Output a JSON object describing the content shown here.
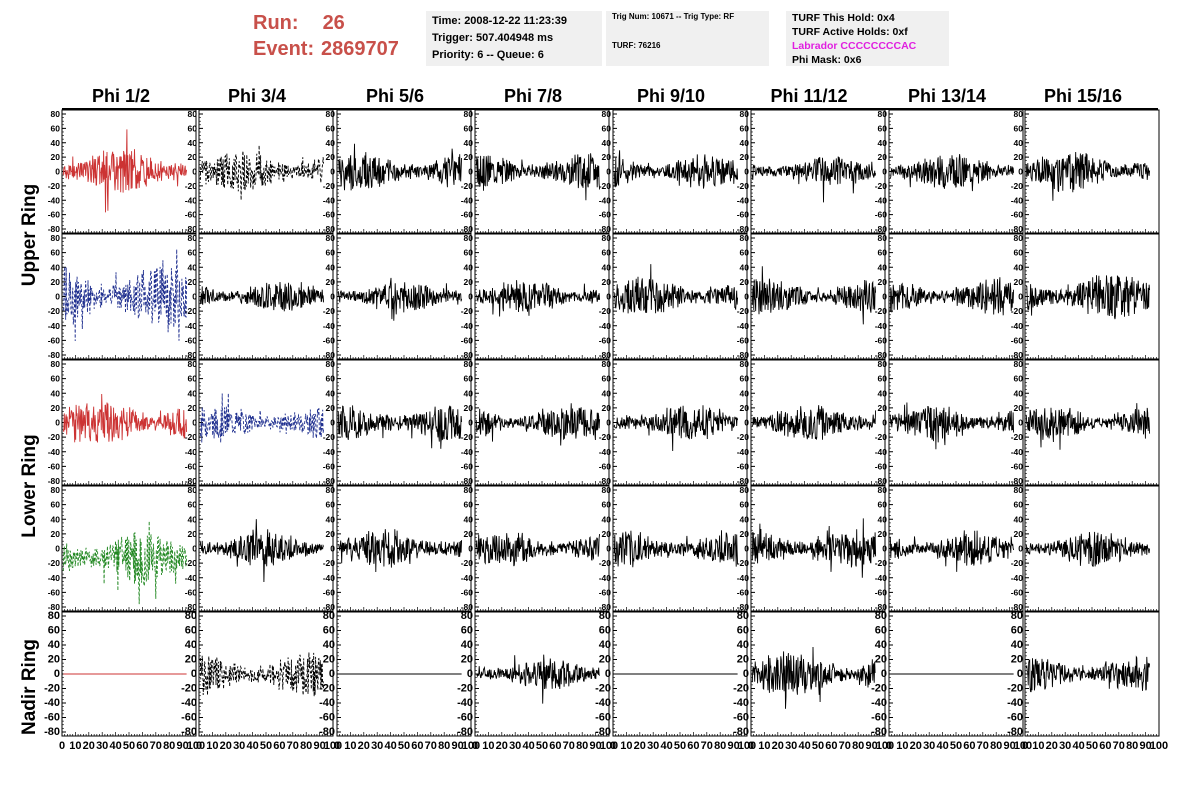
{
  "header": {
    "run_label": "Run:",
    "run_value": "26",
    "event_label": "Event:",
    "event_value": "2869707",
    "box1": {
      "time": "Time: 2008-12-22 11:23:39",
      "trigger": "Trigger: 507.404948 ms",
      "priority": "Priority: 6 -- Queue: 6"
    },
    "box2": {
      "trig": "Trig Num: 10671 -- Trig Type: RF",
      "turf": "TURF: 76216"
    },
    "box3": {
      "this_hold": "TURF This Hold: 0x4",
      "active_holds": "TURF Active Holds: 0xf",
      "labrador": "Labrador CCCCCCCCAC",
      "phi_mask": "Phi Mask: 0x6"
    }
  },
  "columns": [
    "Phi 1/2",
    "Phi 3/4",
    "Phi 5/6",
    "Phi 7/8",
    "Phi 9/10",
    "Phi 11/12",
    "Phi 13/14",
    "Phi 15/16"
  ],
  "rings": [
    "Upper Ring",
    "Lower Ring",
    "Nadir Ring"
  ],
  "chart_data": {
    "type": "line",
    "description_of_grid": "5 rows x 8 columns of waveform panels",
    "x": {
      "range": [
        0,
        100
      ],
      "ticks": [
        0,
        10,
        20,
        30,
        40,
        50,
        60,
        70,
        80,
        90,
        100
      ]
    },
    "y": {
      "range": [
        -80,
        80
      ],
      "ticks": [
        80,
        60,
        40,
        20,
        0,
        -20,
        -40,
        -60,
        -80
      ]
    },
    "colors": {
      "red": "#cc3333",
      "blue": "#1f2f8f",
      "green": "#228822",
      "black": "#000000"
    },
    "panels": [
      [
        {
          "color": "red",
          "style": "solid",
          "amp": 18,
          "seed": 11
        },
        {
          "color": "black",
          "style": "dashed",
          "amp": 16,
          "seed": 12
        },
        {
          "color": "black",
          "style": "solid",
          "amp": 15,
          "seed": 13
        },
        {
          "color": "black",
          "style": "solid",
          "amp": 14,
          "seed": 14
        },
        {
          "color": "black",
          "style": "solid",
          "amp": 14,
          "seed": 15
        },
        {
          "color": "black",
          "style": "solid",
          "amp": 12,
          "seed": 16
        },
        {
          "color": "black",
          "style": "solid",
          "amp": 14,
          "seed": 17
        },
        {
          "color": "black",
          "style": "solid",
          "amp": 16,
          "seed": 18
        }
      ],
      [
        {
          "color": "blue",
          "style": "dashed",
          "amp": 26,
          "seed": 21
        },
        {
          "color": "black",
          "style": "solid",
          "amp": 12,
          "seed": 22
        },
        {
          "color": "black",
          "style": "solid",
          "amp": 13,
          "seed": 23
        },
        {
          "color": "black",
          "style": "solid",
          "amp": 13,
          "seed": 24
        },
        {
          "color": "black",
          "style": "solid",
          "amp": 15,
          "seed": 25
        },
        {
          "color": "black",
          "style": "solid",
          "amp": 14,
          "seed": 26
        },
        {
          "color": "black",
          "style": "solid",
          "amp": 14,
          "seed": 27
        },
        {
          "color": "black",
          "style": "solid",
          "amp": 18,
          "seed": 28
        }
      ],
      [
        {
          "color": "red",
          "style": "solid",
          "amp": 18,
          "seed": 31
        },
        {
          "color": "blue",
          "style": "dashed",
          "amp": 13,
          "seed": 32
        },
        {
          "color": "black",
          "style": "solid",
          "amp": 15,
          "seed": 33
        },
        {
          "color": "black",
          "style": "solid",
          "amp": 14,
          "seed": 34
        },
        {
          "color": "black",
          "style": "solid",
          "amp": 14,
          "seed": 35
        },
        {
          "color": "black",
          "style": "solid",
          "amp": 14,
          "seed": 36
        },
        {
          "color": "black",
          "style": "solid",
          "amp": 14,
          "seed": 37
        },
        {
          "color": "black",
          "style": "solid",
          "amp": 13,
          "seed": 38
        }
      ],
      [
        {
          "color": "green",
          "style": "dashed",
          "amp": 22,
          "seed": 41,
          "offset": -12
        },
        {
          "color": "black",
          "style": "solid",
          "amp": 14,
          "seed": 42
        },
        {
          "color": "black",
          "style": "solid",
          "amp": 15,
          "seed": 43
        },
        {
          "color": "black",
          "style": "solid",
          "amp": 14,
          "seed": 44
        },
        {
          "color": "black",
          "style": "solid",
          "amp": 14,
          "seed": 45
        },
        {
          "color": "black",
          "style": "solid",
          "amp": 15,
          "seed": 46
        },
        {
          "color": "black",
          "style": "solid",
          "amp": 13,
          "seed": 47
        },
        {
          "color": "black",
          "style": "solid",
          "amp": 14,
          "seed": 48
        }
      ],
      [
        {
          "color": "red",
          "style": "solid",
          "amp": 0,
          "seed": 51
        },
        {
          "color": "black",
          "style": "dashed",
          "amp": 17,
          "seed": 52
        },
        {
          "color": "black",
          "style": "solid",
          "amp": 0,
          "seed": 53
        },
        {
          "color": "black",
          "style": "solid",
          "amp": 13,
          "seed": 54
        },
        {
          "color": "black",
          "style": "solid",
          "amp": 0,
          "seed": 55
        },
        {
          "color": "black",
          "style": "solid",
          "amp": 17,
          "seed": 56
        },
        {
          "color": "black",
          "style": "solid",
          "amp": 0,
          "seed": 57
        },
        {
          "color": "black",
          "style": "solid",
          "amp": 14,
          "seed": 58
        }
      ]
    ]
  }
}
